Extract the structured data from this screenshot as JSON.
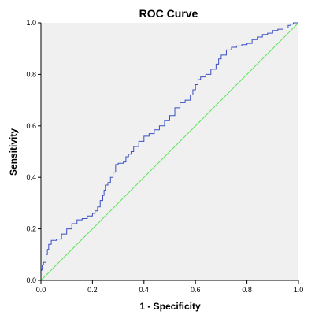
{
  "chart_data": {
    "type": "line",
    "title": "ROC Curve",
    "xlabel": "1 - Specificity",
    "ylabel": "Sensitivity",
    "xlim": [
      0,
      1
    ],
    "ylim": [
      0,
      1
    ],
    "x_ticks": [
      "0.0",
      "0.2",
      "0.4",
      "0.6",
      "0.8",
      "1.0"
    ],
    "y_ticks": [
      "0.0",
      "0.2",
      "0.4",
      "0.6",
      "0.8",
      "1.0"
    ],
    "grid": false,
    "legend": "none",
    "plot_background": "#f0f0f0",
    "series": [
      {
        "color": "#3a4fc4",
        "step": true,
        "points": [
          [
            0.0,
            0.0
          ],
          [
            0.0,
            0.02
          ],
          [
            0.005,
            0.04
          ],
          [
            0.01,
            0.06
          ],
          [
            0.02,
            0.07
          ],
          [
            0.025,
            0.1
          ],
          [
            0.03,
            0.12
          ],
          [
            0.04,
            0.14
          ],
          [
            0.06,
            0.155
          ],
          [
            0.08,
            0.16
          ],
          [
            0.1,
            0.18
          ],
          [
            0.12,
            0.2
          ],
          [
            0.14,
            0.22
          ],
          [
            0.16,
            0.235
          ],
          [
            0.18,
            0.24
          ],
          [
            0.2,
            0.25
          ],
          [
            0.21,
            0.26
          ],
          [
            0.22,
            0.27
          ],
          [
            0.23,
            0.285
          ],
          [
            0.24,
            0.31
          ],
          [
            0.245,
            0.33
          ],
          [
            0.25,
            0.35
          ],
          [
            0.26,
            0.37
          ],
          [
            0.27,
            0.38
          ],
          [
            0.28,
            0.4
          ],
          [
            0.29,
            0.42
          ],
          [
            0.3,
            0.45
          ],
          [
            0.31,
            0.455
          ],
          [
            0.32,
            0.455
          ],
          [
            0.33,
            0.46
          ],
          [
            0.34,
            0.48
          ],
          [
            0.35,
            0.49
          ],
          [
            0.36,
            0.5
          ],
          [
            0.38,
            0.52
          ],
          [
            0.4,
            0.54
          ],
          [
            0.42,
            0.56
          ],
          [
            0.44,
            0.57
          ],
          [
            0.46,
            0.585
          ],
          [
            0.48,
            0.6
          ],
          [
            0.5,
            0.62
          ],
          [
            0.52,
            0.64
          ],
          [
            0.54,
            0.67
          ],
          [
            0.56,
            0.69
          ],
          [
            0.58,
            0.7
          ],
          [
            0.59,
            0.72
          ],
          [
            0.6,
            0.74
          ],
          [
            0.61,
            0.76
          ],
          [
            0.62,
            0.78
          ],
          [
            0.64,
            0.79
          ],
          [
            0.66,
            0.8
          ],
          [
            0.68,
            0.82
          ],
          [
            0.69,
            0.84
          ],
          [
            0.7,
            0.86
          ],
          [
            0.72,
            0.875
          ],
          [
            0.74,
            0.895
          ],
          [
            0.76,
            0.905
          ],
          [
            0.78,
            0.91
          ],
          [
            0.8,
            0.915
          ],
          [
            0.82,
            0.92
          ],
          [
            0.84,
            0.935
          ],
          [
            0.86,
            0.945
          ],
          [
            0.88,
            0.955
          ],
          [
            0.9,
            0.96
          ],
          [
            0.92,
            0.97
          ],
          [
            0.94,
            0.975
          ],
          [
            0.96,
            0.98
          ],
          [
            0.97,
            0.99
          ],
          [
            0.98,
            0.995
          ],
          [
            1.0,
            1.0
          ]
        ]
      },
      {
        "color": "#5ce65c",
        "step": false,
        "points": [
          [
            0.0,
            0.0
          ],
          [
            1.0,
            1.0
          ]
        ]
      }
    ]
  }
}
